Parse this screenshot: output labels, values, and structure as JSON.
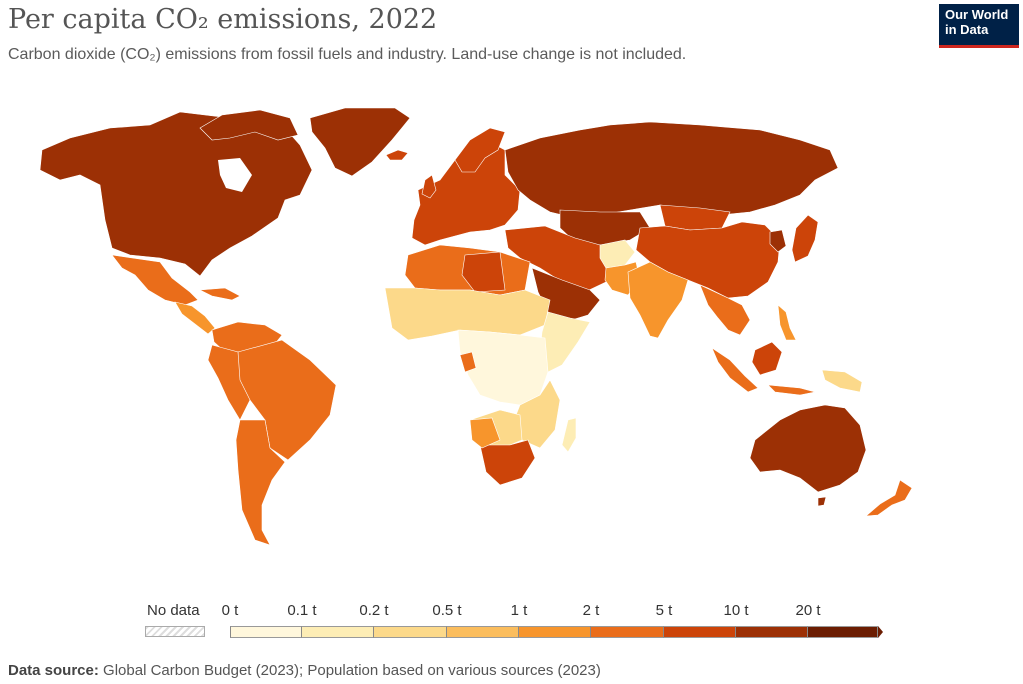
{
  "header": {
    "title": "Per capita CO₂ emissions, 2022",
    "subtitle": "Carbon dioxide (CO₂) emissions from fossil fuels and industry. Land-use change is not included."
  },
  "logo": {
    "line1": "Our World",
    "line2": "in Data"
  },
  "legend": {
    "no_data_label": "No data",
    "ticks": [
      "0 t",
      "0.1 t",
      "0.2 t",
      "0.5 t",
      "1 t",
      "2 t",
      "5 t",
      "10 t",
      "20 t"
    ],
    "bin_colors": [
      "#fff7dc",
      "#fdedb5",
      "#fcd98a",
      "#fbbd5d",
      "#f7952c",
      "#ea6d1a",
      "#cc4409",
      "#9c3005",
      "#6b1d02"
    ]
  },
  "footer": {
    "source_label": "Data source:",
    "source_text": "Global Carbon Budget (2023); Population based on various sources (2023)"
  },
  "colors": {
    "ocean": "#ffffff",
    "border": "#ffffff",
    "nodata": "#e6e6e6"
  }
}
